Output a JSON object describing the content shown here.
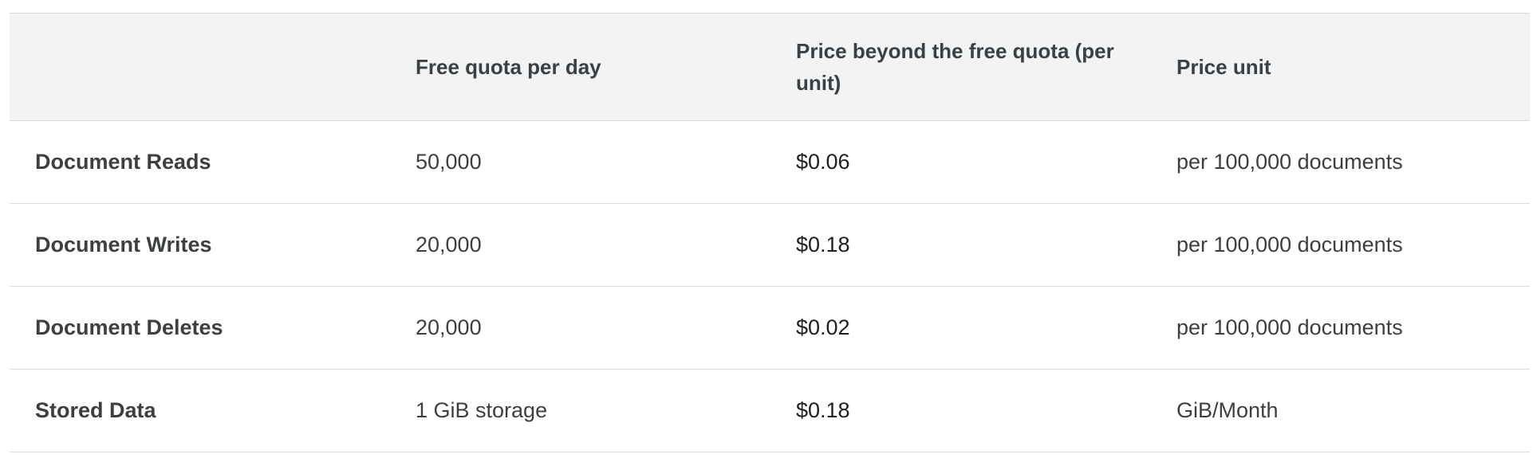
{
  "pricing_table": {
    "headers": {
      "name": "",
      "free_quota": "Free quota per day",
      "price": "Price beyond the free quota (per unit)",
      "unit": "Price unit"
    },
    "rows": [
      {
        "label": "Document Reads",
        "free_quota": "50,000",
        "price": "$0.06",
        "unit": "per 100,000 documents"
      },
      {
        "label": "Document Writes",
        "free_quota": "20,000",
        "price": "$0.18",
        "unit": "per 100,000 documents"
      },
      {
        "label": "Document Deletes",
        "free_quota": "20,000",
        "price": "$0.02",
        "unit": "per 100,000 documents"
      },
      {
        "label": "Stored Data",
        "free_quota": "1 GiB storage",
        "price": "$0.18",
        "unit": "GiB/Month"
      }
    ]
  },
  "colors": {
    "header_background": "#f1f3f4",
    "border": "#dadce0",
    "text": "#3c4043"
  }
}
